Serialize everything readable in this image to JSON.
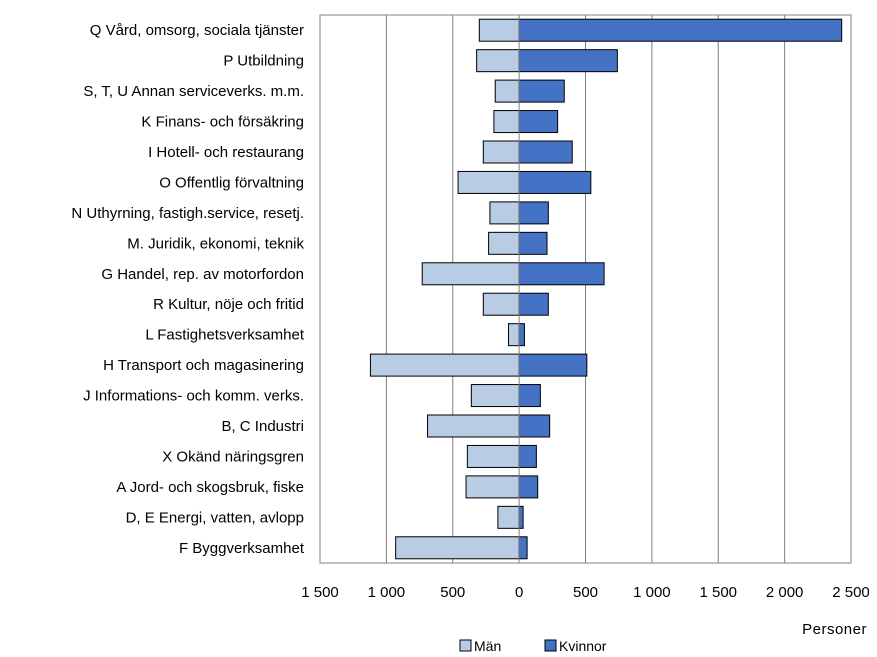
{
  "chart_data": {
    "type": "bar",
    "orientation": "horizontal",
    "layout": "diverging",
    "categories": [
      "Q Vård, omsorg, sociala tjänster",
      "P Utbildning",
      "S, T, U Annan serviceverks. m.m.",
      "K Finans- och försäkring",
      "I Hotell- och restaurang",
      "O Offentlig förvaltning",
      "N Uthyrning, fastigh.service, resetj.",
      "M. Juridik, ekonomi, teknik",
      "G Handel, rep. av motorfordon",
      "R Kultur, nöje och fritid",
      "L Fastighetsverksamhet",
      "H Transport och magasinering",
      "J Informations- och komm. verks.",
      "B, C Industri",
      "X Okänd näringsgren",
      "A Jord- och skogsbruk, fiske",
      "D, E Energi, vatten, avlopp",
      "F Byggverksamhet"
    ],
    "series": [
      {
        "name": "Män",
        "color": "#b8cce4",
        "side": "left",
        "values": [
          300,
          320,
          180,
          190,
          270,
          460,
          220,
          230,
          730,
          270,
          80,
          1120,
          360,
          690,
          390,
          400,
          160,
          930
        ]
      },
      {
        "name": "Kvinnor",
        "color": "#4472c4",
        "side": "right",
        "values": [
          2430,
          740,
          340,
          290,
          400,
          540,
          220,
          210,
          640,
          220,
          40,
          510,
          160,
          230,
          130,
          140,
          30,
          60
        ]
      }
    ],
    "xlim": [
      -1500,
      2500
    ],
    "xticks": [
      -1500,
      -1000,
      -500,
      0,
      500,
      1000,
      1500,
      2000,
      2500
    ],
    "xtick_labels": [
      "1 500",
      "1 000",
      "500",
      "0",
      "500",
      "1 000",
      "1 500",
      "2 000",
      "2 500"
    ],
    "xlabel": "Personer",
    "grid": "vertical",
    "legend_position": "bottom"
  }
}
